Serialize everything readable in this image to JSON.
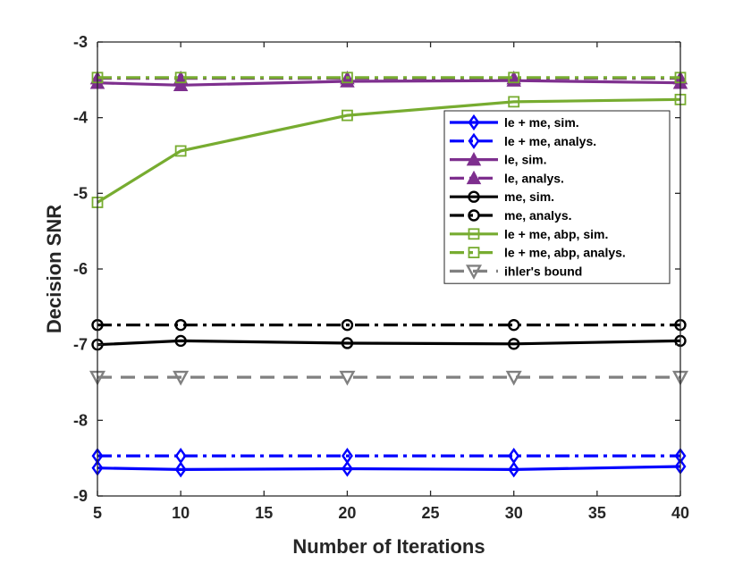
{
  "chart_data": {
    "type": "line",
    "title": "",
    "xlabel": "Number of Iterations",
    "ylabel": "Decision SNR",
    "x": [
      5,
      10,
      20,
      30,
      40
    ],
    "xlim": [
      5,
      40
    ],
    "ylim": [
      -9,
      -3
    ],
    "xticks": [
      "5",
      "10",
      "15",
      "20",
      "25",
      "30",
      "35",
      "40"
    ],
    "yticks": [
      "-9",
      "-8",
      "-7",
      "-6",
      "-5",
      "-4",
      "-3"
    ],
    "xtick_values": [
      5,
      10,
      15,
      20,
      25,
      30,
      35,
      40
    ],
    "ytick_values": [
      -9,
      -8,
      -7,
      -6,
      -5,
      -4,
      -3
    ],
    "grid": false,
    "legend_position": "right",
    "series": [
      {
        "name": "le + me, sim.",
        "values": [
          -8.63,
          -8.65,
          -8.64,
          -8.65,
          -8.61
        ],
        "color": "#0000ff",
        "line": "solid",
        "marker": "diamond"
      },
      {
        "name": "le + me, analys.",
        "values": [
          -8.47,
          -8.47,
          -8.47,
          -8.47,
          -8.47
        ],
        "color": "#0000ff",
        "line": "dashdot",
        "marker": "diamond"
      },
      {
        "name": "le, sim.",
        "values": [
          -3.54,
          -3.57,
          -3.52,
          -3.51,
          -3.54
        ],
        "color": "#7e2f8e",
        "line": "solid",
        "marker": "triangle-up"
      },
      {
        "name": "le, analys.",
        "values": [
          -3.48,
          -3.48,
          -3.48,
          -3.48,
          -3.48
        ],
        "color": "#7e2f8e",
        "line": "dashdot",
        "marker": "triangle-up"
      },
      {
        "name": "me, sim.",
        "values": [
          -7.0,
          -6.95,
          -6.98,
          -6.99,
          -6.95
        ],
        "color": "#000000",
        "line": "solid",
        "marker": "circle"
      },
      {
        "name": "me, analys.",
        "values": [
          -6.74,
          -6.74,
          -6.74,
          -6.74,
          -6.74
        ],
        "color": "#000000",
        "line": "dashdot",
        "marker": "circle"
      },
      {
        "name": "le + me, abp, sim.",
        "values": [
          -5.12,
          -4.44,
          -3.97,
          -3.79,
          -3.76
        ],
        "color": "#77ac30",
        "line": "solid",
        "marker": "square"
      },
      {
        "name": "le + me, abp, analys.",
        "values": [
          -3.47,
          -3.47,
          -3.47,
          -3.47,
          -3.47
        ],
        "color": "#77ac30",
        "line": "dashdot",
        "marker": "square"
      },
      {
        "name": "ihler's bound",
        "values": [
          -7.43,
          -7.43,
          -7.43,
          -7.43,
          -7.43
        ],
        "color": "#808080",
        "line": "dashed",
        "marker": "triangle-down"
      }
    ]
  }
}
